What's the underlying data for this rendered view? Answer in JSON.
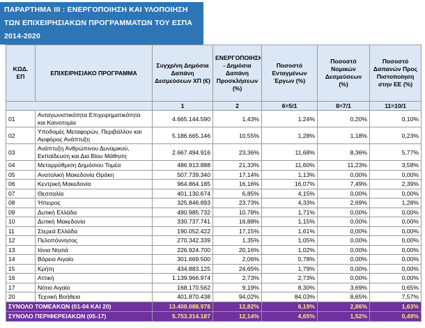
{
  "title": "ΠΑΡΑΡΤΗΜΑ ΙΙΙ : ΕΝΕΡΓΟΠΟΙΗΣΗ ΚΑΙ ΥΛΟΠΟΙΗΣΗ ΤΩΝ ΕΠΙΧΕΙΡΗΣΙΑΚΩΝ ΠΡΟΓΡΑΜΜΑΤΩΝ ΤΟΥ ΕΣΠΑ 2014-2020",
  "table": {
    "header": [
      "ΚΩΔ. ΕΠ",
      "ΕΠΙΧΕΙΡΗΣΙΑΚΟ ΠΡΟΓΡΑΜΜΑ",
      "Συγχρ/νη Δημόσια Δαπάνη Δεσμεύσεων ΧΠ (€)",
      "ΕΝΕΡΓΟΠΟΙΗΣΗ - Δημόσια Δαπάνη Προσκλήσεων (%)",
      "Ποσοστό Ενταγμένων Έργων (%)",
      "Ποσοστό Νομικών Δεσμεύσεων (%)",
      "Ποσοστό Δαπανών Προς Πιστοποίηση στην ΕΕ (%)"
    ],
    "subheader": [
      "1",
      "2",
      "6=5/1",
      "8=7/1",
      "11=10/1"
    ],
    "rows": [
      [
        "01",
        "Ανταγωνιστικότητα Επιχειρηματικότητα και Καινοτομία",
        "4.665.144.590",
        "1,43%",
        "1,24%",
        "0,20%",
        "0,10%"
      ],
      [
        "02",
        "Υποδομές Μεταφορών, Περιβάλλον και Αειφόρος Ανάπτυξη",
        "5.186.665.146",
        "10,55%",
        "1,28%",
        "1,18%",
        "0,23%"
      ],
      [
        "03",
        "Ανάπτυξη Ανθρώπινου Δυναμικού, Εκπαίδευση και Δια Βίου Μάθηση",
        "2.667.494.916",
        "23,36%",
        "11,68%",
        "8,36%",
        "5,77%"
      ],
      [
        "04",
        "Μεταρρύθμιση Δημόσιου Τομέα",
        "486.913.888",
        "21,33%",
        "11,60%",
        "11,23%",
        "3,58%"
      ],
      [
        "05",
        "Ανατολική Μακεδονία Θράκη",
        "507.739.340",
        "17,14%",
        "1,13%",
        "0,00%",
        "0,00%"
      ],
      [
        "06",
        "Κεντρική Μακεδονία",
        "964.864.185",
        "16,16%",
        "16,07%",
        "7,49%",
        "2,39%"
      ],
      [
        "07",
        "Θεσσαλία",
        "401.130.674",
        "6,85%",
        "4,15%",
        "0,00%",
        "0,00%"
      ],
      [
        "08",
        "Ήπειρος",
        "325.846.893",
        "23,73%",
        "4,33%",
        "2,69%",
        "1,28%"
      ],
      [
        "09",
        "Δυτική Ελλάδα",
        "490.985.732",
        "10,78%",
        "1,71%",
        "0,00%",
        "0,00%"
      ],
      [
        "10",
        "Δυτική Μακεδονία",
        "330.737.741",
        "16,88%",
        "1,15%",
        "0,00%",
        "0,00%"
      ],
      [
        "11",
        "Στερεά Ελλάδα",
        "190.052.422",
        "17,15%",
        "1,61%",
        "0,00%",
        "0,00%"
      ],
      [
        "12",
        "Πελοπόννησος",
        "270.342.339",
        "1,35%",
        "1,05%",
        "0,00%",
        "0,00%"
      ],
      [
        "13",
        "Ιόνια Νησιά",
        "226.924.700",
        "20,16%",
        "1,02%",
        "0,00%",
        "0,00%"
      ],
      [
        "14",
        "Βόρειο Αιγαίο",
        "301.669.500",
        "2,06%",
        "0,78%",
        "0,00%",
        "0,00%"
      ],
      [
        "15",
        "Κρήτη",
        "434.883.125",
        "24,65%",
        "1,79%",
        "0,00%",
        "0,00%"
      ],
      [
        "16",
        "Αττική",
        "1.139.966.974",
        "2,73%",
        "2,73%",
        "0,00%",
        "0,00%"
      ],
      [
        "17",
        "Νότιο Αιγαίο",
        "168.170.562",
        "9,19%",
        "8,30%",
        "3,69%",
        "0,65%"
      ],
      [
        "20",
        "Τεχνική Βοήθεια",
        "401.870.438",
        "94,02%",
        "84,03%",
        "8,65%",
        "7,57%"
      ]
    ],
    "totals": [
      [
        "ΣΥΝΟΛΟ ΤΟΜΕΑΚΩΝ (01-04 ΚΑΙ 20)",
        "13.408.088.978",
        "12,82%",
        "6,19%",
        "2,86%",
        "1,63%"
      ],
      [
        "ΣΥΝΟΛΟ ΠΕΡΙΦΕΡΕΙΑΚΩΝ (05-17)",
        "5.753.314.187",
        "12,14%",
        "4,65%",
        "1,52%",
        "0,49%"
      ]
    ]
  }
}
